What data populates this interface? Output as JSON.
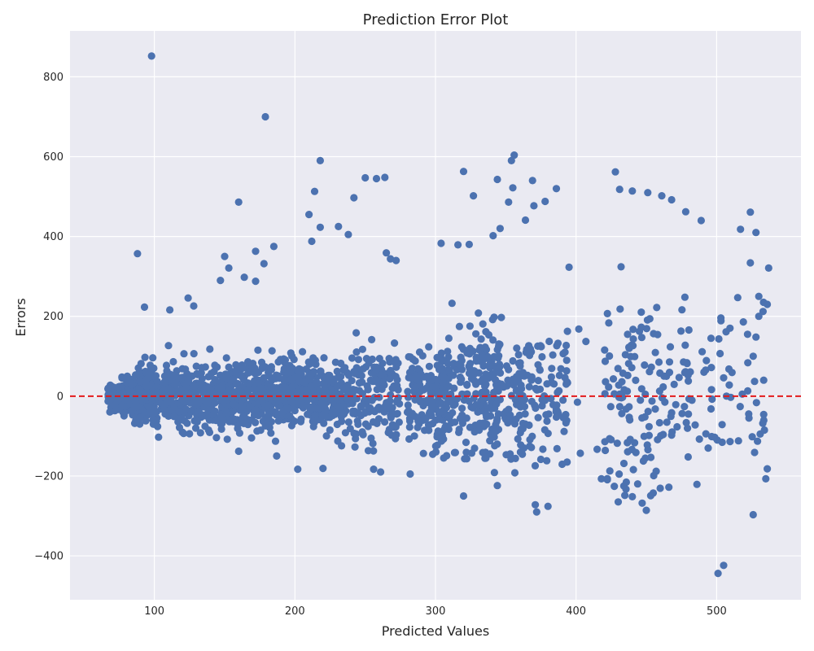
{
  "chart_data": {
    "type": "scatter",
    "title": "Prediction Error Plot",
    "xlabel": "Predicted Values",
    "ylabel": "Errors",
    "xlim": [
      40,
      560
    ],
    "ylim": [
      -510,
      915
    ],
    "xticks": [
      100,
      200,
      300,
      400,
      500
    ],
    "yticks": [
      -400,
      -200,
      0,
      200,
      400,
      600,
      800
    ],
    "grid": true,
    "reference_line": {
      "y": 0,
      "style": "dashed",
      "color": "#e31a1c"
    },
    "point_color": "#4c72b0",
    "background_color": "#eaeaf2",
    "points": [
      [
        98,
        852
      ],
      [
        179,
        700
      ],
      [
        218,
        590
      ],
      [
        356,
        604
      ],
      [
        354,
        590
      ],
      [
        320,
        563
      ],
      [
        428,
        562
      ],
      [
        344,
        543
      ],
      [
        258,
        545
      ],
      [
        264,
        548
      ],
      [
        250,
        547
      ],
      [
        369,
        540
      ],
      [
        386,
        520
      ],
      [
        355,
        522
      ],
      [
        242,
        497
      ],
      [
        327,
        502
      ],
      [
        461,
        502
      ],
      [
        528,
        410
      ],
      [
        524,
        461
      ],
      [
        160,
        486
      ],
      [
        214,
        513
      ],
      [
        431,
        518
      ],
      [
        440,
        514
      ],
      [
        451,
        510
      ],
      [
        352,
        486
      ],
      [
        370,
        477
      ],
      [
        378,
        488
      ],
      [
        210,
        455
      ],
      [
        218,
        423
      ],
      [
        231,
        425
      ],
      [
        238,
        405
      ],
      [
        212,
        388
      ],
      [
        346,
        420
      ],
      [
        341,
        402
      ],
      [
        364,
        441
      ],
      [
        304,
        383
      ],
      [
        316,
        379
      ],
      [
        324,
        380
      ],
      [
        88,
        357
      ],
      [
        265,
        359
      ],
      [
        268,
        344
      ],
      [
        272,
        340
      ],
      [
        185,
        375
      ],
      [
        150,
        350
      ],
      [
        172,
        363
      ],
      [
        153,
        321
      ],
      [
        178,
        332
      ],
      [
        395,
        323
      ],
      [
        432,
        324
      ],
      [
        517,
        418
      ],
      [
        524,
        334
      ],
      [
        537,
        321
      ],
      [
        503,
        196
      ],
      [
        515,
        247
      ],
      [
        530,
        250
      ],
      [
        536,
        230
      ],
      [
        93,
        223
      ],
      [
        111,
        216
      ],
      [
        128,
        226
      ],
      [
        147,
        290
      ],
      [
        164,
        298
      ],
      [
        172,
        288
      ],
      [
        124,
        246
      ],
      [
        486,
        -221
      ],
      [
        501,
        -444
      ],
      [
        505,
        -424
      ],
      [
        526,
        -297
      ],
      [
        535,
        -207
      ],
      [
        536,
        -182
      ],
      [
        527,
        -141
      ],
      [
        531,
        -95
      ],
      [
        534,
        -85
      ],
      [
        523,
        -55
      ],
      [
        344,
        -224
      ],
      [
        320,
        -250
      ],
      [
        371,
        -272
      ],
      [
        380,
        -276
      ],
      [
        372,
        -290
      ],
      [
        430,
        -265
      ],
      [
        440,
        -252
      ],
      [
        447,
        -268
      ],
      [
        450,
        -286
      ],
      [
        418,
        -207
      ],
      [
        434,
        -225
      ],
      [
        466,
        -228
      ],
      [
        457,
        -188
      ],
      [
        202,
        -183
      ],
      [
        220,
        -181
      ],
      [
        282,
        -195
      ],
      [
        261,
        -190
      ],
      [
        256,
        -183
      ],
      [
        160,
        -138
      ],
      [
        187,
        -150
      ],
      [
        403,
        -143
      ],
      [
        415,
        -133
      ],
      [
        401,
        -15
      ],
      [
        407,
        137
      ],
      [
        402,
        168
      ],
      [
        393,
        127
      ],
      [
        489,
        440
      ],
      [
        478,
        462
      ],
      [
        468,
        492
      ],
      [
        496,
        145
      ],
      [
        491,
        60
      ],
      [
        494,
        -130
      ],
      [
        496,
        -32
      ],
      [
        505,
        46
      ],
      [
        509,
        28
      ],
      [
        507,
        0
      ],
      [
        510,
        -3
      ],
      [
        530,
        200
      ],
      [
        533,
        212
      ],
      [
        527,
        37
      ],
      [
        526,
        100
      ],
      [
        522,
        155
      ],
      [
        519,
        186
      ],
      [
        528,
        148
      ]
    ]
  }
}
